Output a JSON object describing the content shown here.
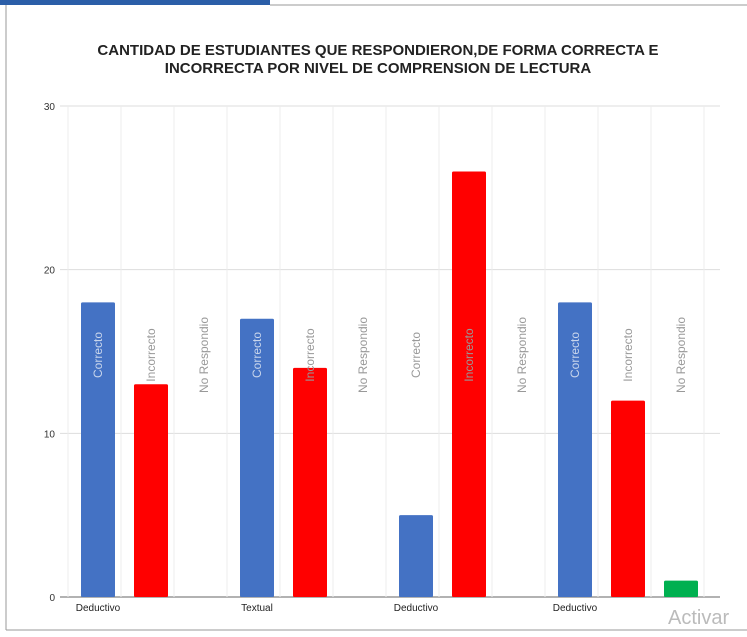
{
  "chart_data": {
    "type": "bar",
    "title_lines": [
      "CANTIDAD DE ESTUDIANTES QUE RESPONDIERON,DE FORMA CORRECTA E",
      "INCORRECTA POR NIVEL DE COMPRENSION DE LECTURA"
    ],
    "ylim": [
      0,
      30
    ],
    "yticks": [
      0,
      10,
      20,
      30
    ],
    "grid": true,
    "colors": {
      "Correcto": "#4472c4",
      "Incorrecto": "#ff0000",
      "No Respondio": "#00b050"
    },
    "groups": [
      {
        "category": "Deductivo",
        "bars": [
          {
            "label": "Correcto",
            "value": 18
          },
          {
            "label": "Incorrecto",
            "value": 13
          },
          {
            "label": "No Respondio",
            "value": 0
          }
        ]
      },
      {
        "category": "Textual",
        "bars": [
          {
            "label": "Correcto",
            "value": 17
          },
          {
            "label": "Incorrecto",
            "value": 14
          },
          {
            "label": "No Respondio",
            "value": 0
          }
        ]
      },
      {
        "category": "Deductivo",
        "bars": [
          {
            "label": "Correcto",
            "value": 5
          },
          {
            "label": "Incorrecto",
            "value": 26
          },
          {
            "label": "No Respondio",
            "value": 0
          }
        ]
      },
      {
        "category": "Deductivo",
        "bars": [
          {
            "label": "Correcto",
            "value": 18
          },
          {
            "label": "Incorrecto",
            "value": 12
          },
          {
            "label": "No Respondio",
            "value": 1
          }
        ]
      }
    ]
  },
  "watermark": "Activar"
}
